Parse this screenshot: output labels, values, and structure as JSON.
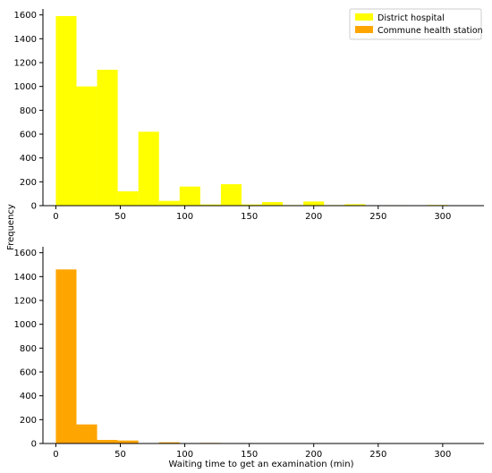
{
  "figure": {
    "shared_ylabel": "Frequency",
    "xlabel": "Waiting time to get an examination (min)"
  },
  "colors": {
    "district": "#ffff00",
    "commune": "#ffa500",
    "axis": "#000000"
  },
  "chart_data": [
    {
      "type": "bar",
      "histogram": true,
      "series": [
        {
          "name": "District hospital",
          "color": "#ffff00",
          "bins": [
            {
              "x0": 0,
              "x1": 16,
              "value": 1590
            },
            {
              "x0": 16,
              "x1": 32,
              "value": 1000
            },
            {
              "x0": 32,
              "x1": 48,
              "value": 1140
            },
            {
              "x0": 48,
              "x1": 64,
              "value": 120
            },
            {
              "x0": 64,
              "x1": 80,
              "value": 620
            },
            {
              "x0": 80,
              "x1": 96,
              "value": 40
            },
            {
              "x0": 96,
              "x1": 112,
              "value": 160
            },
            {
              "x0": 112,
              "x1": 128,
              "value": 10
            },
            {
              "x0": 128,
              "x1": 144,
              "value": 180
            },
            {
              "x0": 144,
              "x1": 160,
              "value": 10
            },
            {
              "x0": 160,
              "x1": 176,
              "value": 30
            },
            {
              "x0": 176,
              "x1": 192,
              "value": 5
            },
            {
              "x0": 192,
              "x1": 208,
              "value": 35
            },
            {
              "x0": 208,
              "x1": 224,
              "value": 5
            },
            {
              "x0": 224,
              "x1": 240,
              "value": 12
            },
            {
              "x0": 240,
              "x1": 256,
              "value": 3
            },
            {
              "x0": 256,
              "x1": 272,
              "value": 4
            },
            {
              "x0": 272,
              "x1": 288,
              "value": 2
            },
            {
              "x0": 288,
              "x1": 304,
              "value": 6
            },
            {
              "x0": 304,
              "x1": 320,
              "value": 2
            }
          ]
        }
      ],
      "legend": {
        "placement": "top-right",
        "entries": [
          {
            "label": "District hospital",
            "color": "#ffff00"
          },
          {
            "label": "Commune health station",
            "color": "#ffa500"
          }
        ]
      },
      "xlim": [
        -10,
        332
      ],
      "ylim": [
        0,
        1650
      ],
      "xticks": [
        0,
        50,
        100,
        150,
        200,
        250,
        300
      ],
      "yticks": [
        0,
        200,
        400,
        600,
        800,
        1000,
        1200,
        1400,
        1600
      ],
      "grid": false
    },
    {
      "type": "bar",
      "histogram": true,
      "series": [
        {
          "name": "Commune health station",
          "color": "#ffa500",
          "bins": [
            {
              "x0": 0,
              "x1": 16,
              "value": 1460
            },
            {
              "x0": 16,
              "x1": 32,
              "value": 160
            },
            {
              "x0": 32,
              "x1": 48,
              "value": 30
            },
            {
              "x0": 48,
              "x1": 64,
              "value": 25
            },
            {
              "x0": 64,
              "x1": 80,
              "value": 3
            },
            {
              "x0": 80,
              "x1": 96,
              "value": 10
            },
            {
              "x0": 96,
              "x1": 112,
              "value": 3
            },
            {
              "x0": 112,
              "x1": 128,
              "value": 5
            },
            {
              "x0": 128,
              "x1": 144,
              "value": 2
            },
            {
              "x0": 144,
              "x1": 160,
              "value": 2
            },
            {
              "x0": 160,
              "x1": 176,
              "value": 2
            },
            {
              "x0": 176,
              "x1": 192,
              "value": 3
            },
            {
              "x0": 192,
              "x1": 208,
              "value": 2
            },
            {
              "x0": 208,
              "x1": 224,
              "value": 1
            },
            {
              "x0": 224,
              "x1": 240,
              "value": 1
            },
            {
              "x0": 240,
              "x1": 256,
              "value": 3
            },
            {
              "x0": 256,
              "x1": 272,
              "value": 1
            }
          ]
        }
      ],
      "xlim": [
        -10,
        332
      ],
      "ylim": [
        0,
        1650
      ],
      "xticks": [
        0,
        50,
        100,
        150,
        200,
        250,
        300
      ],
      "yticks": [
        0,
        200,
        400,
        600,
        800,
        1000,
        1200,
        1400,
        1600
      ],
      "grid": false
    }
  ]
}
